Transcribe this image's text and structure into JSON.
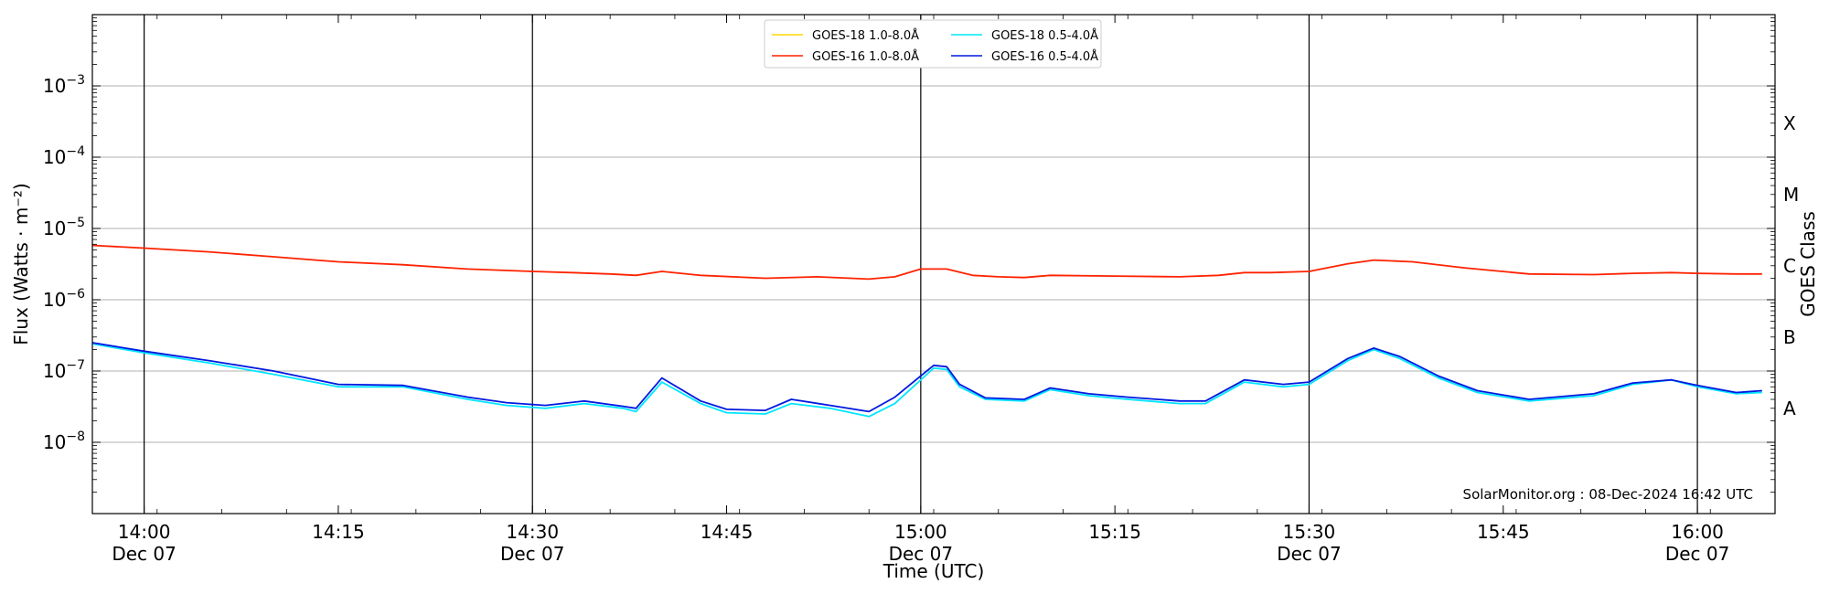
{
  "chart_data": {
    "type": "line",
    "title": "",
    "xlabel": "Time (UTC)",
    "ylabel": "Flux (Watts · m⁻²)",
    "y2label": "GOES Class",
    "yscale": "log",
    "ylim": [
      1e-09,
      0.01
    ],
    "xlim": [
      "2024-12-07T13:56",
      "2024-12-07T16:06"
    ],
    "x_ticks": [
      {
        "time": "2024-12-07T14:00",
        "line1": "14:00",
        "line2": "Dec 07"
      },
      {
        "time": "2024-12-07T14:15",
        "line1": "14:15",
        "line2": ""
      },
      {
        "time": "2024-12-07T14:30",
        "line1": "14:30",
        "line2": "Dec 07"
      },
      {
        "time": "2024-12-07T14:45",
        "line1": "14:45",
        "line2": ""
      },
      {
        "time": "2024-12-07T15:00",
        "line1": "15:00",
        "line2": "Dec 07"
      },
      {
        "time": "2024-12-07T15:15",
        "line1": "15:15",
        "line2": ""
      },
      {
        "time": "2024-12-07T15:30",
        "line1": "15:30",
        "line2": "Dec 07"
      },
      {
        "time": "2024-12-07T15:45",
        "line1": "15:45",
        "line2": ""
      },
      {
        "time": "2024-12-07T16:00",
        "line1": "16:00",
        "line2": "Dec 07"
      }
    ],
    "day_lines": [
      "2024-12-07T14:00",
      "2024-12-07T14:30",
      "2024-12-07T15:00",
      "2024-12-07T15:30",
      "2024-12-07T16:00"
    ],
    "y_ticks": [
      {
        "value": 1e-08,
        "base": "10",
        "exp": "−8"
      },
      {
        "value": 1e-07,
        "base": "10",
        "exp": "−7"
      },
      {
        "value": 1e-06,
        "base": "10",
        "exp": "−6"
      },
      {
        "value": 1e-05,
        "base": "10",
        "exp": "−5"
      },
      {
        "value": 0.0001,
        "base": "10",
        "exp": "−4"
      },
      {
        "value": 0.001,
        "base": "10",
        "exp": "−3"
      }
    ],
    "goes_classes": [
      {
        "label": "A",
        "value": 3e-08
      },
      {
        "label": "B",
        "value": 3e-07
      },
      {
        "label": "C",
        "value": 3e-06
      },
      {
        "label": "M",
        "value": 3e-05
      },
      {
        "label": "X",
        "value": 0.0003
      }
    ],
    "grid": true,
    "legend_position": "top-center",
    "series": [
      {
        "name": "GOES-18 1.0-8.0Å",
        "color": "#ffd700",
        "x": [],
        "y": []
      },
      {
        "name": "GOES-16 1.0-8.0Å",
        "color": "#ff2200",
        "x": [
          "2024-12-07T13:56",
          "2024-12-07T14:00",
          "2024-12-07T14:05",
          "2024-12-07T14:10",
          "2024-12-07T14:15",
          "2024-12-07T14:20",
          "2024-12-07T14:25",
          "2024-12-07T14:30",
          "2024-12-07T14:33",
          "2024-12-07T14:36",
          "2024-12-07T14:38",
          "2024-12-07T14:40",
          "2024-12-07T14:43",
          "2024-12-07T14:48",
          "2024-12-07T14:52",
          "2024-12-07T14:56",
          "2024-12-07T14:58",
          "2024-12-07T15:00",
          "2024-12-07T15:02",
          "2024-12-07T15:04",
          "2024-12-07T15:06",
          "2024-12-07T15:08",
          "2024-12-07T15:10",
          "2024-12-07T15:15",
          "2024-12-07T15:20",
          "2024-12-07T15:23",
          "2024-12-07T15:25",
          "2024-12-07T15:27",
          "2024-12-07T15:30",
          "2024-12-07T15:33",
          "2024-12-07T15:35",
          "2024-12-07T15:38",
          "2024-12-07T15:42",
          "2024-12-07T15:47",
          "2024-12-07T15:52",
          "2024-12-07T15:55",
          "2024-12-07T15:58",
          "2024-12-07T16:00",
          "2024-12-07T16:03",
          "2024-12-07T16:05"
        ],
        "y": [
          5.8e-06,
          5.3e-06,
          4.7e-06,
          4e-06,
          3.4e-06,
          3.1e-06,
          2.7e-06,
          2.5e-06,
          2.4e-06,
          2.3e-06,
          2.2e-06,
          2.5e-06,
          2.2e-06,
          2e-06,
          2.1e-06,
          1.95e-06,
          2.1e-06,
          2.7e-06,
          2.7e-06,
          2.2e-06,
          2.1e-06,
          2.05e-06,
          2.2e-06,
          2.15e-06,
          2.1e-06,
          2.2e-06,
          2.4e-06,
          2.4e-06,
          2.5e-06,
          3.2e-06,
          3.6e-06,
          3.4e-06,
          2.8e-06,
          2.3e-06,
          2.25e-06,
          2.35e-06,
          2.4e-06,
          2.35e-06,
          2.3e-06,
          2.3e-06
        ]
      },
      {
        "name": "GOES-18 0.5-4.0Å",
        "color": "#00e5ff",
        "x": [
          "2024-12-07T13:56",
          "2024-12-07T14:00",
          "2024-12-07T14:05",
          "2024-12-07T14:10",
          "2024-12-07T14:15",
          "2024-12-07T14:20",
          "2024-12-07T14:25",
          "2024-12-07T14:28",
          "2024-12-07T14:31",
          "2024-12-07T14:34",
          "2024-12-07T14:37",
          "2024-12-07T14:38",
          "2024-12-07T14:40",
          "2024-12-07T14:43",
          "2024-12-07T14:45",
          "2024-12-07T14:48",
          "2024-12-07T14:50",
          "2024-12-07T14:53",
          "2024-12-07T14:56",
          "2024-12-07T14:58",
          "2024-12-07T15:01",
          "2024-12-07T15:02",
          "2024-12-07T15:03",
          "2024-12-07T15:05",
          "2024-12-07T15:08",
          "2024-12-07T15:10",
          "2024-12-07T15:13",
          "2024-12-07T15:16",
          "2024-12-07T15:20",
          "2024-12-07T15:22",
          "2024-12-07T15:25",
          "2024-12-07T15:28",
          "2024-12-07T15:30",
          "2024-12-07T15:33",
          "2024-12-07T15:35",
          "2024-12-07T15:37",
          "2024-12-07T15:40",
          "2024-12-07T15:43",
          "2024-12-07T15:47",
          "2024-12-07T15:52",
          "2024-12-07T15:55",
          "2024-12-07T15:58",
          "2024-12-07T16:00",
          "2024-12-07T16:03",
          "2024-12-07T16:05"
        ],
        "y": [
          2.4e-07,
          1.8e-07,
          1.3e-07,
          9e-08,
          6e-08,
          6e-08,
          4e-08,
          3.3e-08,
          3e-08,
          3.5e-08,
          3e-08,
          2.7e-08,
          7e-08,
          3.5e-08,
          2.6e-08,
          2.5e-08,
          3.5e-08,
          3e-08,
          2.3e-08,
          3.5e-08,
          1.1e-07,
          1.05e-07,
          6e-08,
          4e-08,
          3.8e-08,
          5.5e-08,
          4.5e-08,
          4e-08,
          3.5e-08,
          3.5e-08,
          7e-08,
          6e-08,
          6.5e-08,
          1.4e-07,
          2e-07,
          1.5e-07,
          8e-08,
          5e-08,
          3.8e-08,
          4.5e-08,
          6.5e-08,
          7.5e-08,
          6e-08,
          4.8e-08,
          5e-08
        ]
      },
      {
        "name": "GOES-16 0.5-4.0Å",
        "color": "#0018e0",
        "x": [
          "2024-12-07T13:56",
          "2024-12-07T14:00",
          "2024-12-07T14:05",
          "2024-12-07T14:10",
          "2024-12-07T14:15",
          "2024-12-07T14:20",
          "2024-12-07T14:25",
          "2024-12-07T14:28",
          "2024-12-07T14:31",
          "2024-12-07T14:34",
          "2024-12-07T14:37",
          "2024-12-07T14:38",
          "2024-12-07T14:40",
          "2024-12-07T14:43",
          "2024-12-07T14:45",
          "2024-12-07T14:48",
          "2024-12-07T14:50",
          "2024-12-07T14:53",
          "2024-12-07T14:56",
          "2024-12-07T14:58",
          "2024-12-07T15:01",
          "2024-12-07T15:02",
          "2024-12-07T15:03",
          "2024-12-07T15:05",
          "2024-12-07T15:08",
          "2024-12-07T15:10",
          "2024-12-07T15:13",
          "2024-12-07T15:16",
          "2024-12-07T15:20",
          "2024-12-07T15:22",
          "2024-12-07T15:25",
          "2024-12-07T15:28",
          "2024-12-07T15:30",
          "2024-12-07T15:33",
          "2024-12-07T15:35",
          "2024-12-07T15:37",
          "2024-12-07T15:40",
          "2024-12-07T15:43",
          "2024-12-07T15:47",
          "2024-12-07T15:52",
          "2024-12-07T15:55",
          "2024-12-07T15:58",
          "2024-12-07T16:00",
          "2024-12-07T16:03",
          "2024-12-07T16:05"
        ],
        "y": [
          2.5e-07,
          1.9e-07,
          1.4e-07,
          1e-07,
          6.5e-08,
          6.3e-08,
          4.3e-08,
          3.6e-08,
          3.3e-08,
          3.8e-08,
          3.2e-08,
          3e-08,
          8e-08,
          3.8e-08,
          2.9e-08,
          2.8e-08,
          4e-08,
          3.3e-08,
          2.7e-08,
          4.3e-08,
          1.2e-07,
          1.15e-07,
          6.5e-08,
          4.2e-08,
          4e-08,
          5.8e-08,
          4.8e-08,
          4.3e-08,
          3.8e-08,
          3.8e-08,
          7.5e-08,
          6.5e-08,
          7e-08,
          1.5e-07,
          2.1e-07,
          1.6e-07,
          8.5e-08,
          5.3e-08,
          4e-08,
          4.8e-08,
          6.8e-08,
          7.5e-08,
          6.3e-08,
          5e-08,
          5.3e-08
        ]
      }
    ],
    "annotation": "SolarMonitor.org : 08-Dec-2024 16:42 UTC"
  }
}
